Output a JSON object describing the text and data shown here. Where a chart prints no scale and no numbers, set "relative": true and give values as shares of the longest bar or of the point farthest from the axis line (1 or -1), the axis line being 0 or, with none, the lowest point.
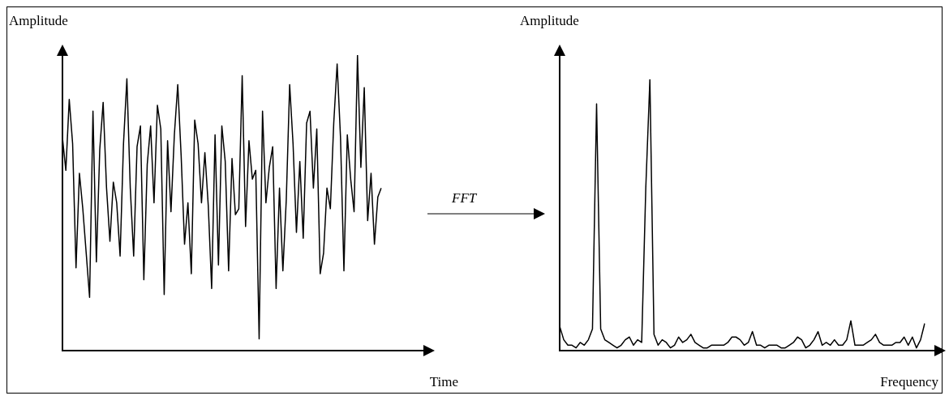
{
  "chart_data": [
    {
      "type": "line",
      "ylabel": "Amplitude",
      "xlabel": "Time",
      "relative": true,
      "color": "#000000",
      "annotations": [
        "FFT"
      ],
      "categories": [
        null,
        null,
        null,
        null,
        null,
        null,
        null,
        null,
        null,
        null,
        null,
        null,
        null,
        null,
        null,
        null,
        null,
        null,
        null,
        null,
        null,
        null,
        null,
        null,
        null,
        null,
        null,
        null,
        null,
        null,
        null,
        null,
        null,
        null,
        null,
        null,
        null,
        null,
        null,
        null,
        null,
        null,
        null,
        null,
        null,
        null,
        null,
        null,
        null,
        null,
        null,
        null,
        null,
        null,
        null,
        null,
        null,
        null,
        null,
        null,
        null,
        null,
        null,
        null,
        null,
        null,
        null,
        null,
        null,
        null,
        null,
        null,
        null,
        null,
        null,
        null,
        null,
        null,
        null,
        null,
        null,
        null,
        null,
        null,
        null,
        null,
        null,
        null,
        null,
        null,
        null,
        null,
        null,
        null,
        null
      ],
      "values": [
        0.72,
        0.61,
        0.85,
        0.7,
        0.28,
        0.6,
        0.48,
        0.33,
        0.18,
        0.81,
        0.3,
        0.68,
        0.84,
        0.55,
        0.37,
        0.57,
        0.5,
        0.32,
        0.7,
        0.92,
        0.55,
        0.32,
        0.69,
        0.76,
        0.24,
        0.63,
        0.76,
        0.5,
        0.83,
        0.75,
        0.19,
        0.71,
        0.47,
        0.73,
        0.9,
        0.66,
        0.36,
        0.5,
        0.26,
        0.78,
        0.7,
        0.5,
        0.67,
        0.49,
        0.21,
        0.73,
        0.29,
        0.76,
        0.64,
        0.27,
        0.65,
        0.46,
        0.48,
        0.93,
        0.42,
        0.71,
        0.58,
        0.61,
        0.04,
        0.81,
        0.5,
        0.62,
        0.69,
        0.21,
        0.55,
        0.27,
        0.51,
        0.9,
        0.7,
        0.4,
        0.64,
        0.38,
        0.77,
        0.81,
        0.55,
        0.75,
        0.26,
        0.33,
        0.55,
        0.48,
        0.77,
        0.97,
        0.72,
        0.27,
        0.73,
        0.58,
        0.47,
        1,
        0.62,
        0.89,
        0.44,
        0.6,
        0.36,
        0.52,
        0.55
      ]
    },
    {
      "type": "line",
      "ylabel": "Amplitude",
      "xlabel": "Frequency",
      "relative": true,
      "color": "#000000",
      "categories": [
        null,
        null,
        null,
        null,
        null,
        null,
        null,
        null,
        null,
        null,
        null,
        null,
        null,
        null,
        null,
        null,
        null,
        null,
        null,
        null,
        null,
        null,
        null,
        null,
        null,
        null,
        null,
        null,
        null,
        null,
        null,
        null,
        null,
        null,
        null,
        null,
        null,
        null,
        null,
        null,
        null,
        null,
        null,
        null,
        null,
        null,
        null,
        null,
        null,
        null,
        null,
        null,
        null,
        null,
        null,
        null,
        null,
        null,
        null,
        null,
        null,
        null,
        null,
        null,
        null,
        null,
        null,
        null,
        null,
        null,
        null,
        null,
        null,
        null,
        null,
        null,
        null,
        null,
        null,
        null,
        null,
        null,
        null,
        null,
        null,
        null,
        null,
        null,
        null,
        null
      ],
      "values": [
        0.09,
        0.04,
        0.02,
        0.02,
        0.01,
        0.03,
        0.02,
        0.04,
        0.08,
        0.91,
        0.08,
        0.04,
        0.03,
        0.02,
        0.01,
        0.02,
        0.04,
        0.05,
        0.02,
        0.04,
        0.03,
        0.6,
        1,
        0.06,
        0.02,
        0.04,
        0.03,
        0.01,
        0.02,
        0.05,
        0.03,
        0.04,
        0.06,
        0.03,
        0.02,
        0.01,
        0.01,
        0.02,
        0.02,
        0.02,
        0.02,
        0.03,
        0.05,
        0.05,
        0.04,
        0.02,
        0.03,
        0.07,
        0.02,
        0.02,
        0.01,
        0.02,
        0.02,
        0.02,
        0.01,
        0.01,
        0.02,
        0.03,
        0.05,
        0.04,
        0.01,
        0.02,
        0.04,
        0.07,
        0.02,
        0.03,
        0.02,
        0.04,
        0.02,
        0.02,
        0.04,
        0.11,
        0.02,
        0.02,
        0.02,
        0.03,
        0.04,
        0.06,
        0.03,
        0.02,
        0.02,
        0.02,
        0.03,
        0.03,
        0.05,
        0.02,
        0.05,
        0.01,
        0.04,
        0.1
      ]
    }
  ]
}
